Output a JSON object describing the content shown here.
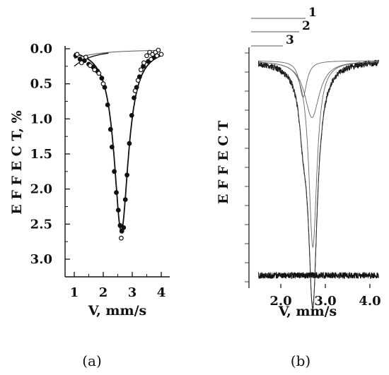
{
  "chart_data": [
    {
      "panel": "a",
      "type": "scatter",
      "panel_label": "(a)",
      "xlabel": "V,  mm/s",
      "ylabel": "E F F E C T,  %",
      "xlim": [
        0.7,
        4.1
      ],
      "ylim": [
        3.4,
        0.0
      ],
      "y_inverted": true,
      "x_ticks": [
        "1",
        "2",
        "3",
        "4"
      ],
      "y_ticks": [
        "0.0",
        "0.5",
        "1.0",
        "1.5",
        "2.0",
        "2.5",
        "3.0"
      ],
      "series": [
        {
          "marker": "filled-circle",
          "x": [
            1.05,
            1.2,
            1.35,
            1.5,
            1.65,
            1.8,
            1.95,
            2.05,
            2.15,
            2.25,
            2.3,
            2.38,
            2.45,
            2.52,
            2.58,
            2.64,
            2.7,
            2.76,
            2.82,
            2.9,
            2.98,
            3.06,
            3.15,
            3.25,
            3.38,
            3.55,
            3.75
          ],
          "y": [
            0.1,
            0.15,
            0.17,
            0.22,
            0.26,
            0.32,
            0.42,
            0.55,
            0.8,
            1.15,
            1.4,
            1.75,
            2.05,
            2.3,
            2.52,
            2.6,
            2.55,
            2.15,
            1.8,
            1.35,
            0.95,
            0.7,
            0.55,
            0.4,
            0.25,
            0.18,
            0.12
          ]
        },
        {
          "marker": "open-circle",
          "x": [
            1.1,
            1.25,
            1.4,
            1.55,
            1.7,
            1.85,
            2.0,
            2.62,
            3.1,
            3.2,
            3.3,
            3.4,
            3.5,
            3.6,
            3.7,
            3.8,
            3.9,
            4.0,
            3.65,
            3.85
          ],
          "y": [
            0.08,
            0.2,
            0.12,
            0.24,
            0.3,
            0.35,
            0.5,
            2.7,
            0.6,
            0.45,
            0.3,
            0.2,
            0.1,
            0.05,
            0.08,
            0.05,
            0.02,
            0.08,
            0.15,
            0.1
          ]
        }
      ],
      "fit": {
        "center": 2.62,
        "depth": 2.62,
        "hwhm": 0.3
      }
    },
    {
      "panel": "b",
      "type": "line",
      "panel_label": "(b)",
      "xlabel": "V,  mm/s",
      "ylabel": "E F F E C T",
      "xlim": [
        1.45,
        4.2
      ],
      "x_ticks": [
        "2.0",
        "3.0",
        "4.0"
      ],
      "legend_labels": [
        "1",
        "2",
        "3"
      ],
      "components": [
        {
          "center": 2.72,
          "depth": 0.92,
          "hwhm": 0.11
        },
        {
          "center": 2.5,
          "depth": 0.18,
          "hwhm": 0.1
        },
        {
          "center": 2.7,
          "depth": 0.28,
          "hwhm": 0.2
        }
      ],
      "residual": true
    }
  ]
}
